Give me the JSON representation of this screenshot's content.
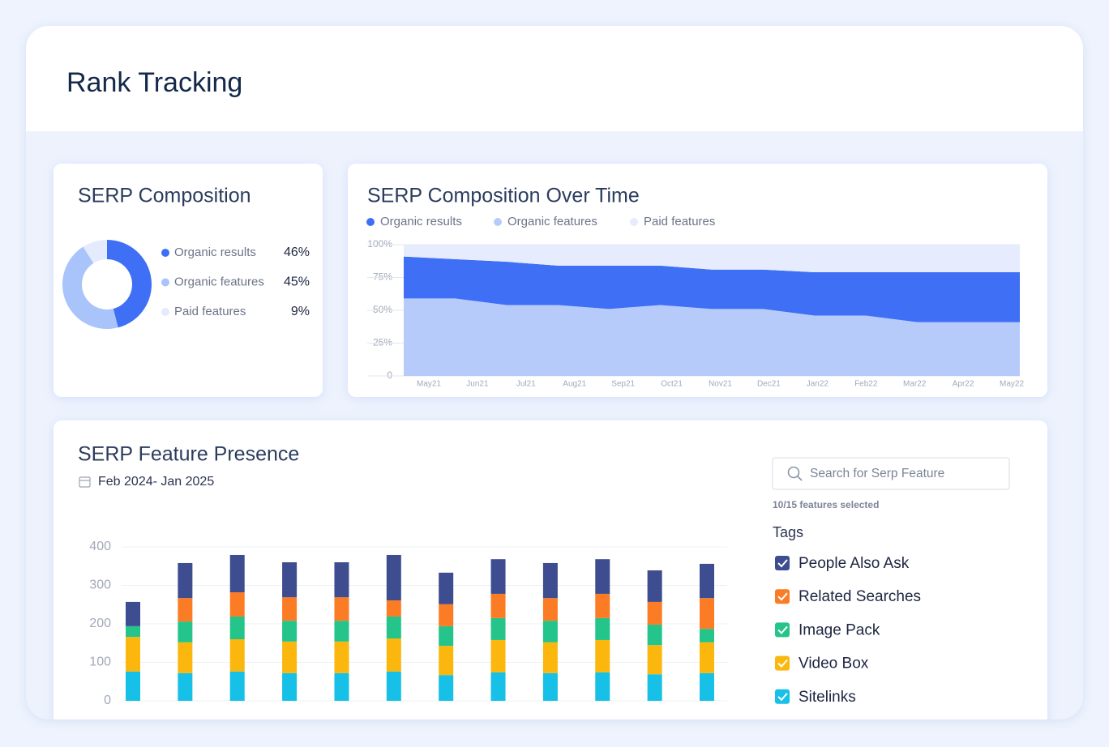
{
  "header": {
    "title": "Rank Tracking"
  },
  "chart_data": [
    {
      "type": "donut",
      "title": "SERP Composition",
      "categories": [
        "Organic results",
        "Organic features",
        "Paid features"
      ],
      "values": [
        46,
        45,
        9
      ],
      "value_labels": [
        "46%",
        "45%",
        "9%"
      ],
      "colors": [
        "#3f6ff5",
        "#a9c3fb",
        "#e4ebfd"
      ]
    },
    {
      "type": "stacked-area",
      "title": "SERP Composition Over Time",
      "categories": [
        "May21",
        "Jun21",
        "Jul21",
        "Aug21",
        "Sep21",
        "Oct21",
        "Nov21",
        "Dec21",
        "Jan22",
        "Feb22",
        "Mar22",
        "Apr22",
        "May22"
      ],
      "series": [
        {
          "name": "Organic results",
          "color": "#3f6ff5",
          "values": [
            32,
            30,
            33,
            30,
            33,
            30,
            30,
            30,
            33,
            33,
            38,
            38,
            38
          ]
        },
        {
          "name": "Organic features",
          "color": "#b7cbfb",
          "values": [
            59,
            59,
            54,
            54,
            51,
            54,
            51,
            51,
            46,
            46,
            41,
            41,
            41
          ]
        },
        {
          "name": "Paid features",
          "color": "#e6ecfd",
          "values": [
            9,
            11,
            13,
            16,
            16,
            16,
            19,
            19,
            21,
            21,
            21,
            21,
            21
          ]
        }
      ],
      "ylim": [
        0,
        100
      ],
      "yticks": [
        0,
        {
          "value": 25,
          "label": "25%"
        },
        {
          "value": 50,
          "label": "50%"
        },
        {
          "value": 75,
          "label": "75%"
        },
        {
          "value": 100,
          "label": "100%"
        }
      ],
      "grid": true
    },
    {
      "type": "stacked-bar",
      "title": "SERP Feature Presence",
      "subtitle": "Feb 2024- Jan 2025",
      "categories": [
        null,
        null,
        null,
        null,
        null,
        null,
        null,
        null,
        null,
        null,
        null,
        null
      ],
      "series": [
        {
          "name": "People Also Ask",
          "color": "#3d4d8f",
          "values": [
            63,
            91,
            97,
            91,
            91,
            118,
            82,
            90,
            91,
            90,
            82,
            89
          ]
        },
        {
          "name": "Related Searches",
          "color": "#fb7c25",
          "values": [
            0,
            61,
            63,
            61,
            61,
            42,
            57,
            63,
            59,
            63,
            59,
            80
          ]
        },
        {
          "name": "Image Pack",
          "color": "#24c48a",
          "values": [
            28,
            54,
            59,
            54,
            54,
            57,
            51,
            57,
            56,
            57,
            53,
            35
          ]
        },
        {
          "name": "Video Box",
          "color": "#fbb70e",
          "values": [
            90,
            80,
            84,
            82,
            82,
            86,
            76,
            84,
            80,
            84,
            76,
            80
          ]
        },
        {
          "name": "Sitelinks",
          "color": "#16c0e6",
          "values": [
            76,
            72,
            76,
            72,
            72,
            76,
            67,
            74,
            72,
            74,
            69,
            72
          ]
        }
      ],
      "ylim": [
        0,
        400
      ],
      "yticks": [
        0,
        100,
        200,
        300,
        400
      ],
      "grid": true
    }
  ],
  "search": {
    "placeholder": "Search for Serp Feature",
    "status": "10/15 features selected"
  },
  "tags": {
    "title": "Tags"
  }
}
